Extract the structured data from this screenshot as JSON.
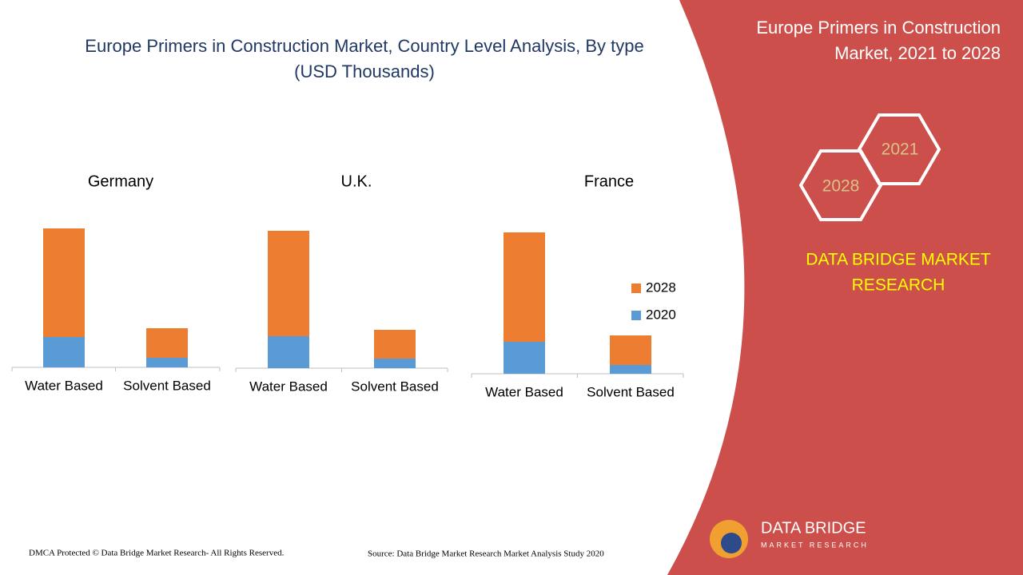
{
  "chart_data": {
    "type": "bar",
    "stacked": true,
    "title": "Europe Primers in Construction Market, Country Level Analysis, By type",
    "subtitle": "(USD Thousands)",
    "panels": [
      {
        "title": "Germany",
        "categories": [
          "Water Based",
          "Solvent Based"
        ]
      },
      {
        "title": "U.K.",
        "categories": [
          "Water Based",
          "Solvent Based"
        ]
      },
      {
        "title": "France",
        "categories": [
          "Water Based",
          "Solvent Based"
        ]
      }
    ],
    "series": [
      {
        "name": "2020",
        "color": "#5b9bd5",
        "values": [
          [
            38,
            12
          ],
          [
            40,
            12
          ],
          [
            40,
            11
          ]
        ]
      },
      {
        "name": "2028",
        "color": "#ed7d31",
        "values": [
          [
            136,
            37
          ],
          [
            132,
            36
          ],
          [
            137,
            37
          ]
        ]
      }
    ]
  },
  "side_panel": {
    "heading": [
      "Europe Primers in Construction",
      "Market, 2021 to 2028"
    ],
    "hexagons": [
      "2021",
      "2028"
    ],
    "brand": [
      "DATA BRIDGE MARKET",
      "RESEARCH"
    ]
  },
  "logo": {
    "name": "DATA BRIDGE",
    "tagline": "MARKET RESEARCH"
  },
  "footer": {
    "copyright": "DMCA Protected © Data Bridge Market Research- All Rights Reserved.",
    "source": "Source: Data Bridge Market Research Market Analysis Study 2020"
  }
}
